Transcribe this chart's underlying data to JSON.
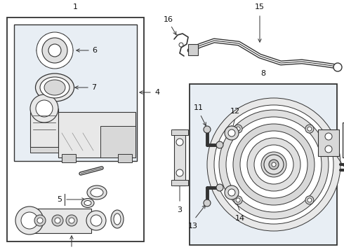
{
  "bg_color": "#ffffff",
  "inner_bg": "#e8eef4",
  "line_color": "#333333",
  "text_color": "#111111",
  "fig_w": 4.9,
  "fig_h": 3.6,
  "dpi": 100
}
